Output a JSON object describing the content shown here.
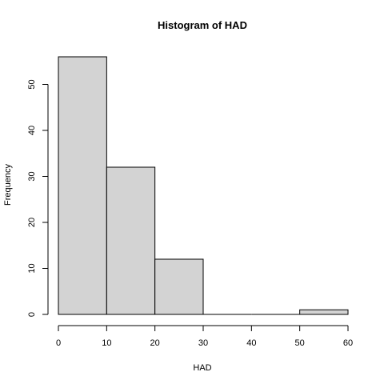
{
  "chart_data": {
    "type": "bar",
    "title": "Histogram of  HAD",
    "xlabel": "HAD",
    "ylabel": "Frequency",
    "bins": [
      {
        "from": 0,
        "to": 10,
        "count": 56
      },
      {
        "from": 10,
        "to": 20,
        "count": 32
      },
      {
        "from": 20,
        "to": 30,
        "count": 12
      },
      {
        "from": 30,
        "to": 40,
        "count": 0
      },
      {
        "from": 40,
        "to": 50,
        "count": 0
      },
      {
        "from": 50,
        "to": 60,
        "count": 1
      }
    ],
    "xlim": [
      0,
      60
    ],
    "ylim": [
      0,
      56
    ],
    "x_ticks": [
      0,
      10,
      20,
      30,
      40,
      50,
      60
    ],
    "y_ticks": [
      0,
      10,
      20,
      30,
      40,
      50
    ],
    "bar_fill": "#d3d3d3",
    "bar_stroke": "#000000",
    "grid": false
  }
}
